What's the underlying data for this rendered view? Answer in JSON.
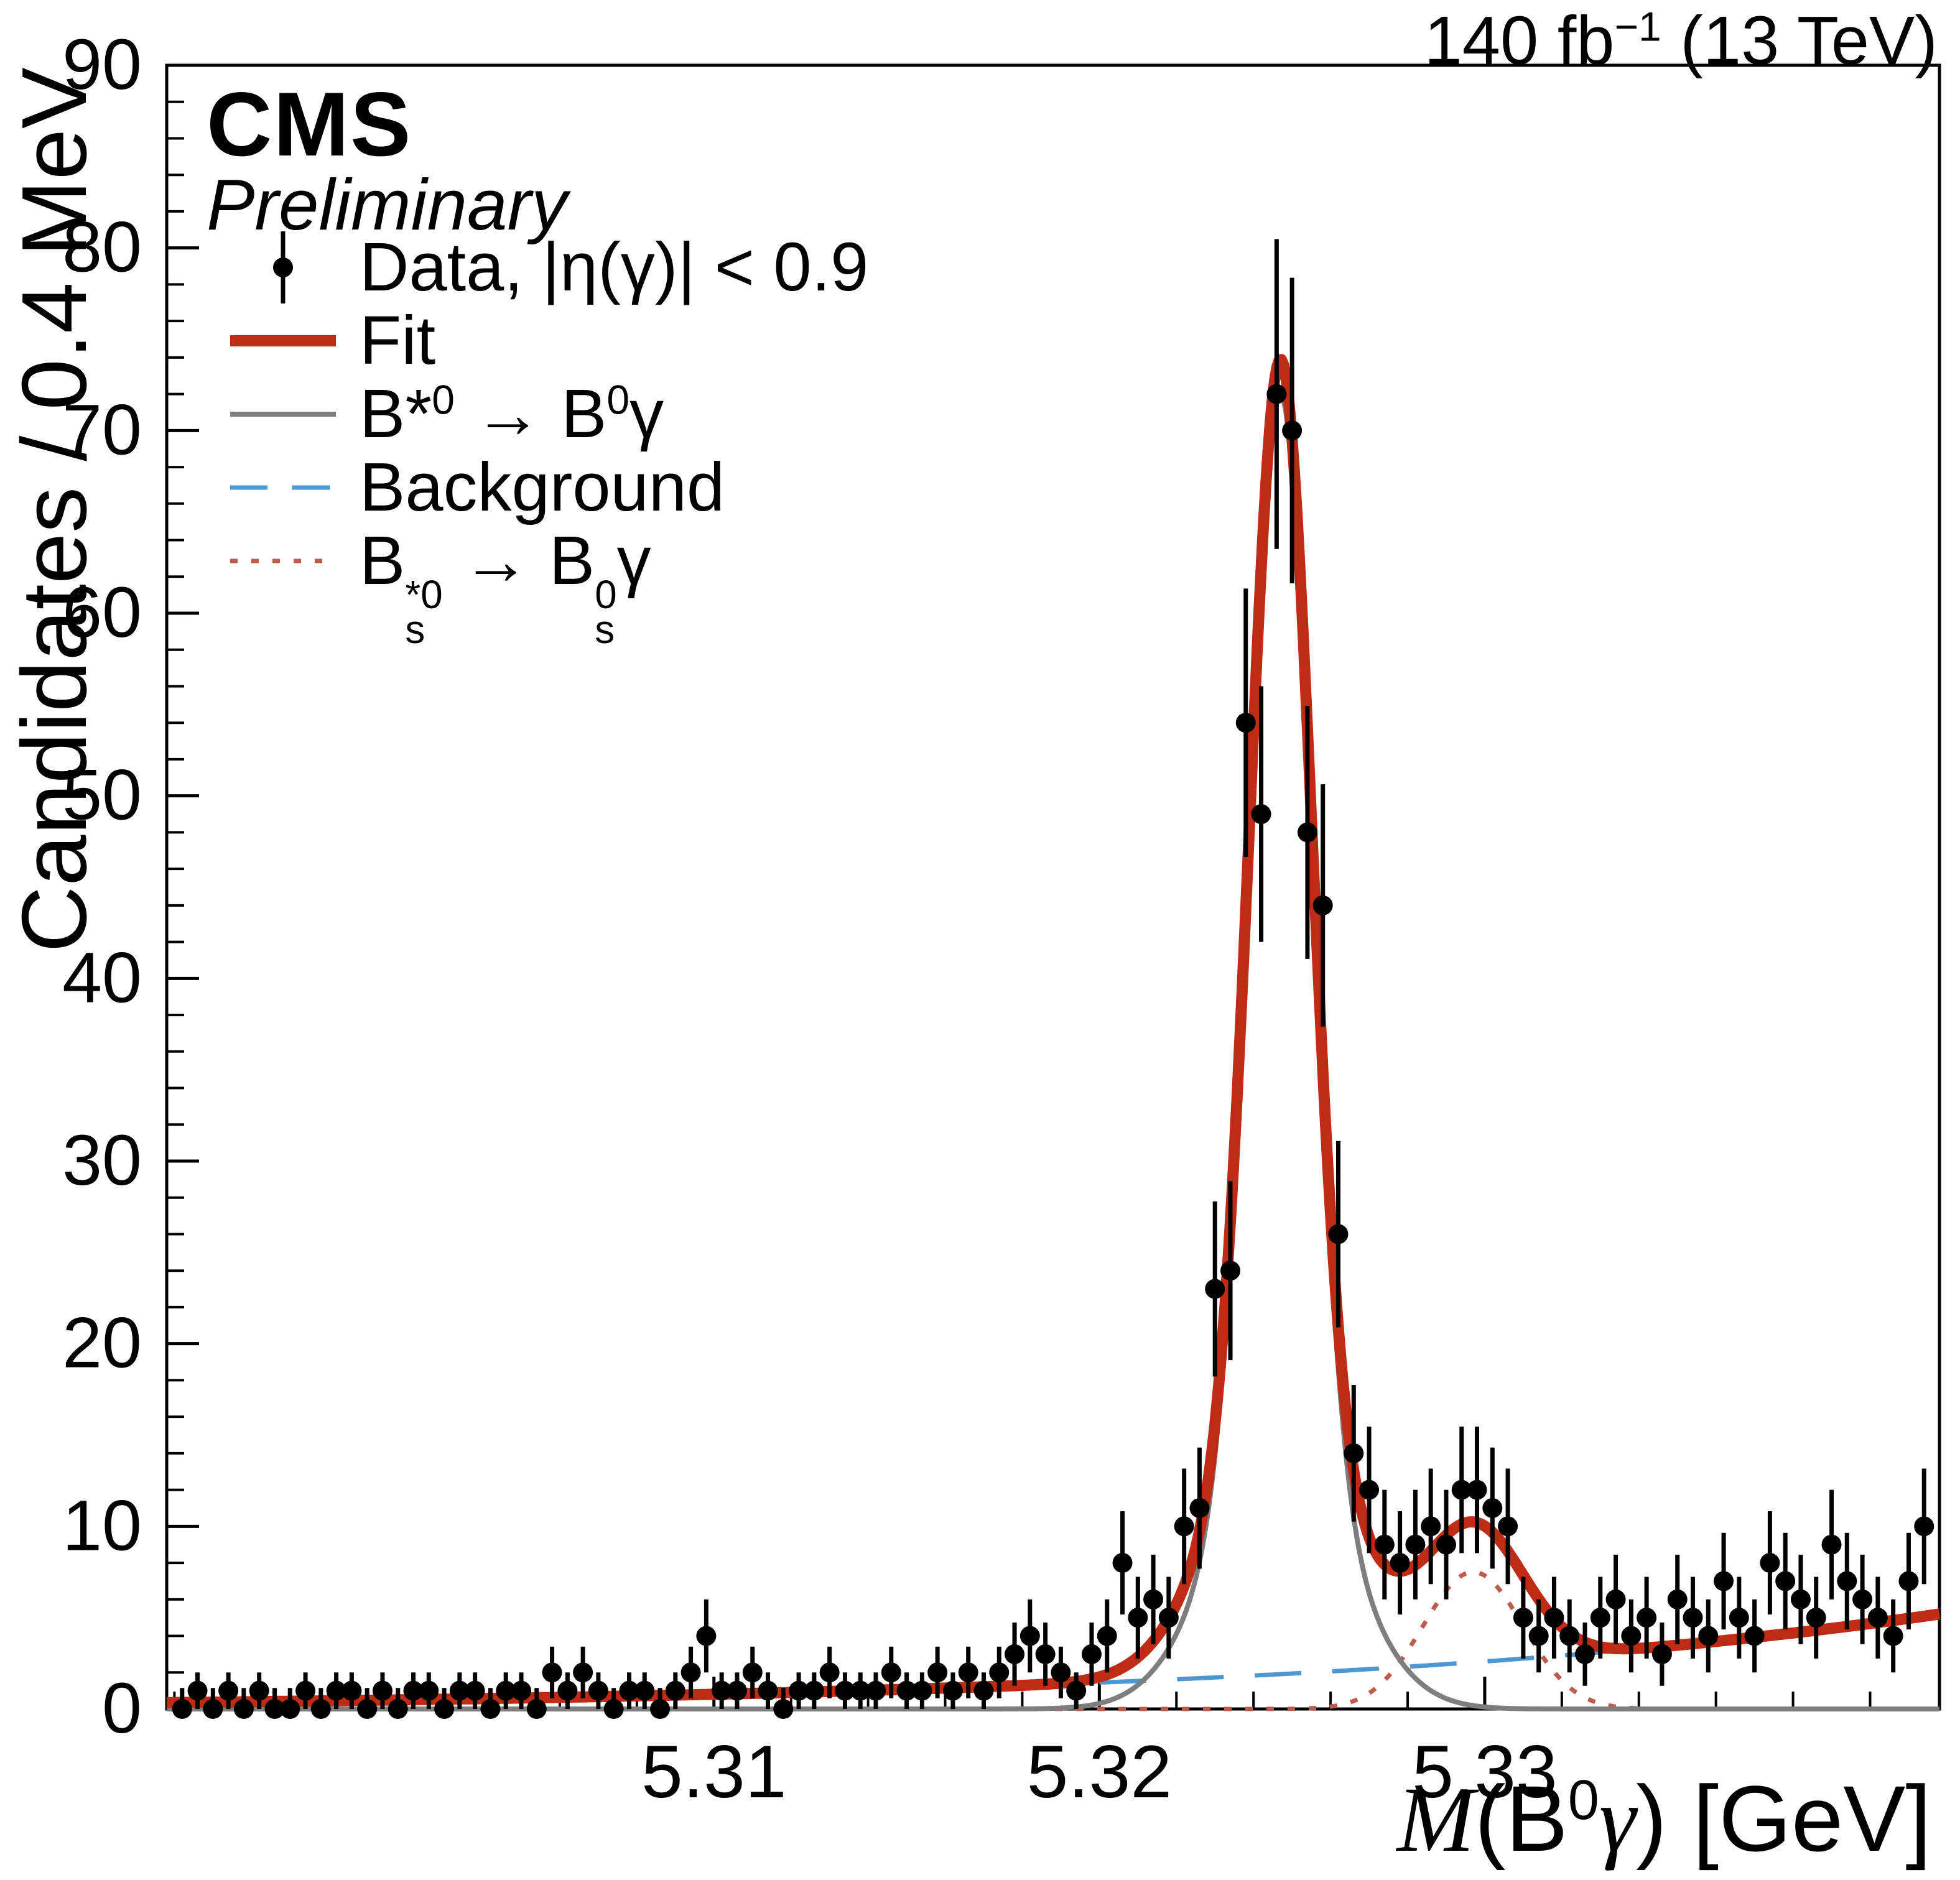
{
  "header": {
    "lumi_p1": "140 fb",
    "lumi_sup": "−1",
    "lumi_p2": " (13 TeV)"
  },
  "branding": {
    "experiment": "CMS",
    "label": "Preliminary"
  },
  "axes": {
    "y_title": "Candidates / 0.4 MeV",
    "x_title": {
      "m": "M",
      "p1": "(B",
      "sup": "0",
      "g": "γ",
      "p2": ") [GeV]"
    }
  },
  "legend": {
    "data": {
      "label": "Data, |η(γ)| < 0.9"
    },
    "fit": {
      "label": "Fit"
    },
    "signal": {
      "b1": "B*",
      "sup1": "0",
      "mid": " → B",
      "sup2": "0",
      "end": "γ"
    },
    "background": {
      "label": "Background"
    },
    "reflection": {
      "b1": "B",
      "top1": "*0",
      "bot1": "s",
      "mid": " → B",
      "top2": "0",
      "bot2": "s",
      "end": "γ"
    }
  },
  "chart_data": {
    "type": "scatter",
    "title": "",
    "xlabel": "M(B0γ) [GeV]",
    "ylabel": "Candidates / 0.4 MeV",
    "xlim": [
      5.2958,
      5.3418
    ],
    "ylim": [
      0,
      90
    ],
    "grid": false,
    "legend_position": "top-left",
    "xticks": [
      5.31,
      5.32,
      5.33
    ],
    "xtick_labels": [
      "5.31",
      "5.32",
      "5.33"
    ],
    "x_minor_step": 0.002,
    "yticks": [
      0,
      10,
      20,
      30,
      40,
      50,
      60,
      70,
      80,
      90
    ],
    "y_minor_step": 2,
    "bin_width_gev": 0.0004,
    "errors": "poisson_sqrt",
    "draw_order": [
      "background",
      "reflection",
      "signal",
      "fit"
    ],
    "series": [
      {
        "id": "data",
        "name": "Data, |η(γ)| < 0.9",
        "type": "points_with_errors",
        "color": "#000000",
        "marker_radius": 16,
        "x_start": 5.2962,
        "x_step": 0.0004,
        "y": [
          0,
          1,
          0,
          1,
          0,
          1,
          0,
          0,
          1,
          0,
          1,
          1,
          0,
          1,
          0,
          1,
          1,
          0,
          1,
          1,
          0,
          1,
          1,
          0,
          2,
          1,
          2,
          1,
          0,
          1,
          1,
          0,
          1,
          2,
          4,
          1,
          1,
          2,
          1,
          0,
          1,
          1,
          2,
          1,
          1,
          1,
          2,
          1,
          1,
          2,
          1,
          2,
          1,
          2,
          3,
          4,
          3,
          2,
          1,
          3,
          4,
          8,
          5,
          6,
          5,
          10,
          11,
          23,
          24,
          54,
          49,
          72,
          70,
          48,
          44,
          26,
          14,
          12,
          9,
          8,
          9,
          10,
          9,
          12,
          12,
          11,
          10,
          5,
          4,
          5,
          4,
          3,
          5,
          6,
          4,
          5,
          3,
          6,
          5,
          4,
          7,
          5,
          4,
          8,
          7,
          6,
          5,
          9,
          7,
          6,
          5,
          4,
          7,
          10
        ]
      },
      {
        "id": "fit",
        "name": "Fit",
        "type": "curve",
        "color": "#bf2b15",
        "width": 18,
        "composite": [
          "background",
          "signal",
          "reflection"
        ]
      },
      {
        "id": "signal",
        "name": "B*0 → B0γ",
        "type": "curve",
        "color": "#7e7e7e",
        "width": 8,
        "model": {
          "kind": "gaussians",
          "center": 5.3247,
          "components": [
            {
              "amp": 58,
              "sigma": 0.00078
            },
            {
              "amp": 14,
              "sigma": 0.0017
            }
          ]
        }
      },
      {
        "id": "background",
        "name": "Background",
        "type": "curve",
        "color": "#4d97d2",
        "width": 7,
        "dash": "75 50",
        "model": {
          "kind": "exp",
          "x0": 5.2958,
          "y0": 0.35,
          "x1": 5.3418,
          "y1": 5.2
        }
      },
      {
        "id": "reflection",
        "name": "Bs*0 → Bs0γ",
        "type": "curve",
        "color": "#bf5b4d",
        "width": 7,
        "dash": "12 22",
        "model": {
          "kind": "gaussians",
          "center": 5.3297,
          "components": [
            {
              "amp": 7.5,
              "sigma": 0.0013
            }
          ]
        }
      }
    ]
  }
}
